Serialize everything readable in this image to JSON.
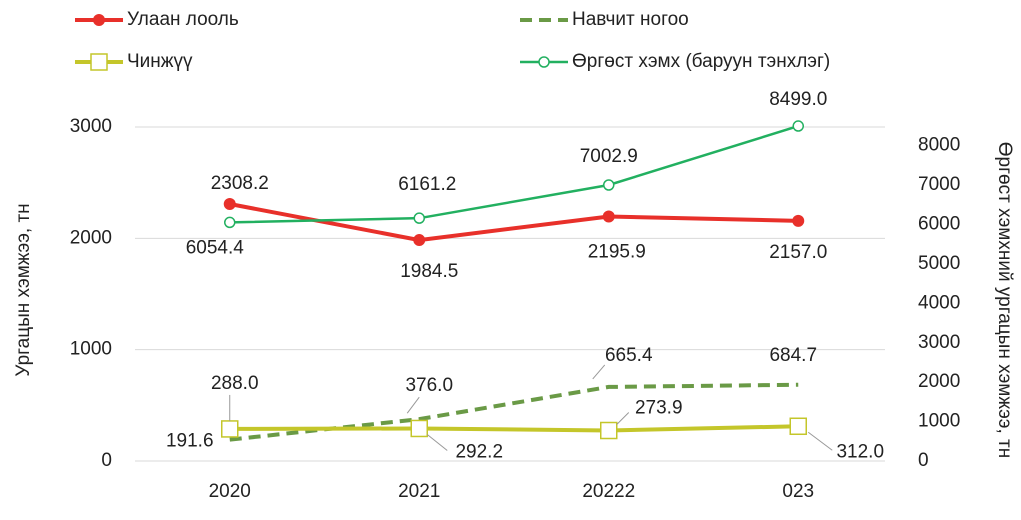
{
  "chart_data": {
    "type": "line",
    "categories": [
      "2020",
      "2021",
      "20222",
      "023"
    ],
    "y_axis_label": "Ургацын хэмжээ, тн",
    "y2_axis_label": "Өргөст хэмхний ургацын хэмжээ, тн",
    "ylim": [
      0,
      3000
    ],
    "yticks": [
      0,
      1000,
      2000,
      3000
    ],
    "y2lim": [
      0,
      8500
    ],
    "y2ticks": [
      0,
      1000,
      2000,
      3000,
      4000,
      5000,
      6000,
      7000,
      8000
    ],
    "grid": true,
    "legend": "top",
    "series": [
      {
        "name": "Улаан лооль",
        "color": "#e8302a",
        "marker": "circle-filled",
        "values": [
          2308.2,
          1984.5,
          2195.9,
          2157.0
        ],
        "value_labels": [
          "2308.2",
          "1984.5",
          "2195.9",
          "2157.0"
        ]
      },
      {
        "name": "Навчит ногоо",
        "color": "#6a9a46",
        "dashed": true,
        "values": [
          191.6,
          376.0,
          665.4,
          684.7
        ],
        "value_labels": [
          "191.6",
          "376.0",
          "665.4",
          "684.7"
        ]
      },
      {
        "name": "Чинжүү",
        "color": "#c4c62a",
        "marker": "square",
        "values": [
          288.0,
          292.2,
          273.9,
          312.0
        ],
        "value_labels": [
          "288.0",
          "292.2",
          "273.9",
          "312.0"
        ]
      },
      {
        "name": "Өргөст хэмх (баруун тэнхлэг)",
        "color": "#22b060",
        "marker": "circle",
        "axis": "y2",
        "values": [
          6054.4,
          6161.2,
          7002.9,
          8499.0
        ],
        "value_labels": [
          "6054.4",
          "6161.2",
          "7002.9",
          "8499.0"
        ]
      }
    ]
  }
}
